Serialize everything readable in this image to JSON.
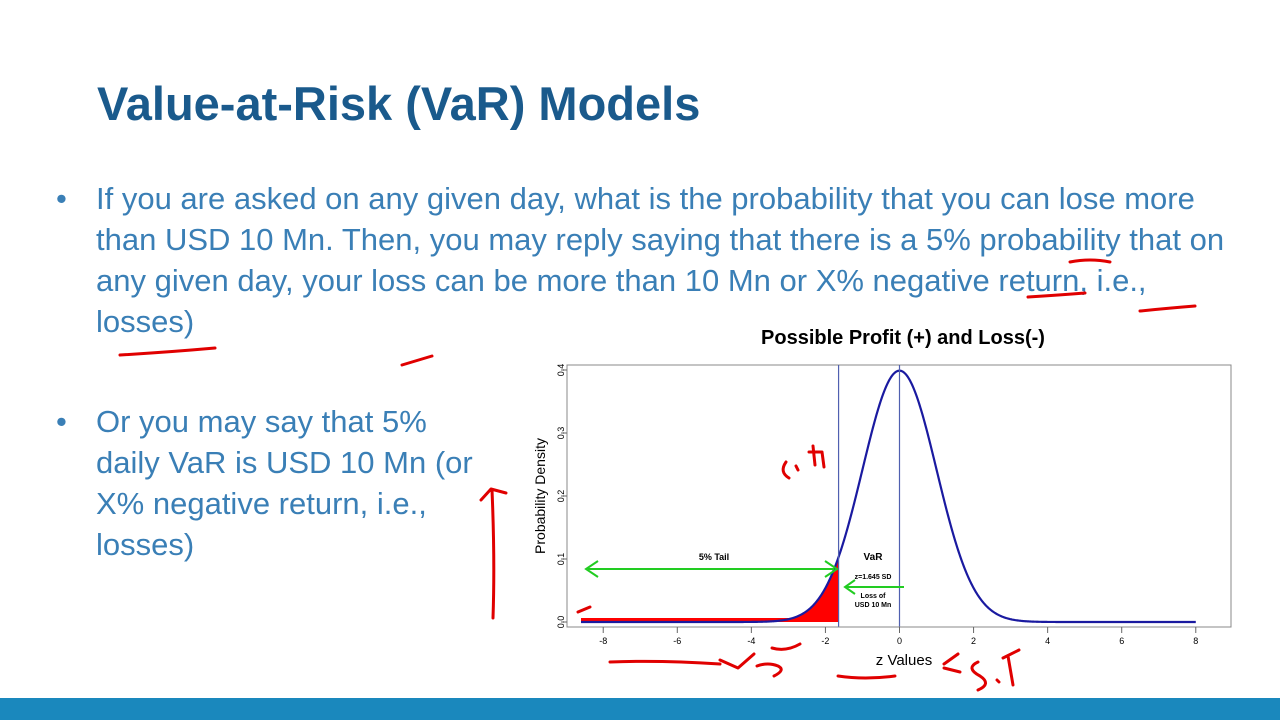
{
  "slide": {
    "title": "Value-at-Risk (VaR) Models",
    "bullets": [
      "If you are asked on any given day, what is the probability that you can lose more than USD 10 Mn. Then, you may reply saying that there is a 5% probability that on any given day, your loss can be more than 10 Mn or X% negative return, i.e., losses)",
      "Or you may say that 5% daily VaR is USD 10 Mn (or X% negative return, i.e., losses)"
    ],
    "bullet_symbol": "•"
  },
  "colors": {
    "title": "#1a5a8c",
    "bullet_text": "#3a7fb6",
    "footer_bar": "#1a88bd",
    "curve": "#1a1aa0",
    "tail_fill": "#ff0000",
    "arrow": "#22cc22",
    "vline": "#5060b0",
    "ink": "#e00000"
  },
  "chart_data": {
    "type": "area",
    "title": "Possible Profit (+) and Loss(-)",
    "xlabel": "z Values",
    "ylabel": "Probability Density",
    "xlim": [
      -8.6,
      8.6
    ],
    "ylim": [
      0,
      0.4
    ],
    "xticks": [
      -8,
      -6,
      -4,
      -2,
      0,
      2,
      4,
      6,
      8
    ],
    "yticks": [
      0.0,
      0.1,
      0.2,
      0.3,
      0.4
    ],
    "xtick_labels": [
      "-8",
      "-6",
      "-4",
      "-2",
      "0",
      "2",
      "4",
      "6",
      "8"
    ],
    "ytick_labels": [
      "0.0",
      "0.1",
      "0.2",
      "0.3",
      "0.4"
    ],
    "series": [
      {
        "distribution": "standard normal",
        "mean": 0,
        "sd": 1,
        "x_range": [
          -8.6,
          8
        ]
      }
    ],
    "shaded_tail": {
      "from": -8.6,
      "to": -1.645
    },
    "vlines": [
      -1.645,
      0
    ],
    "annotations": {
      "tail_label": "5% Tail",
      "var_label": "VaR",
      "z_label": "z=1.645 SD",
      "loss_label_1": "Loss of",
      "loss_label_2": "USD 10 Mn"
    },
    "grid": false
  }
}
